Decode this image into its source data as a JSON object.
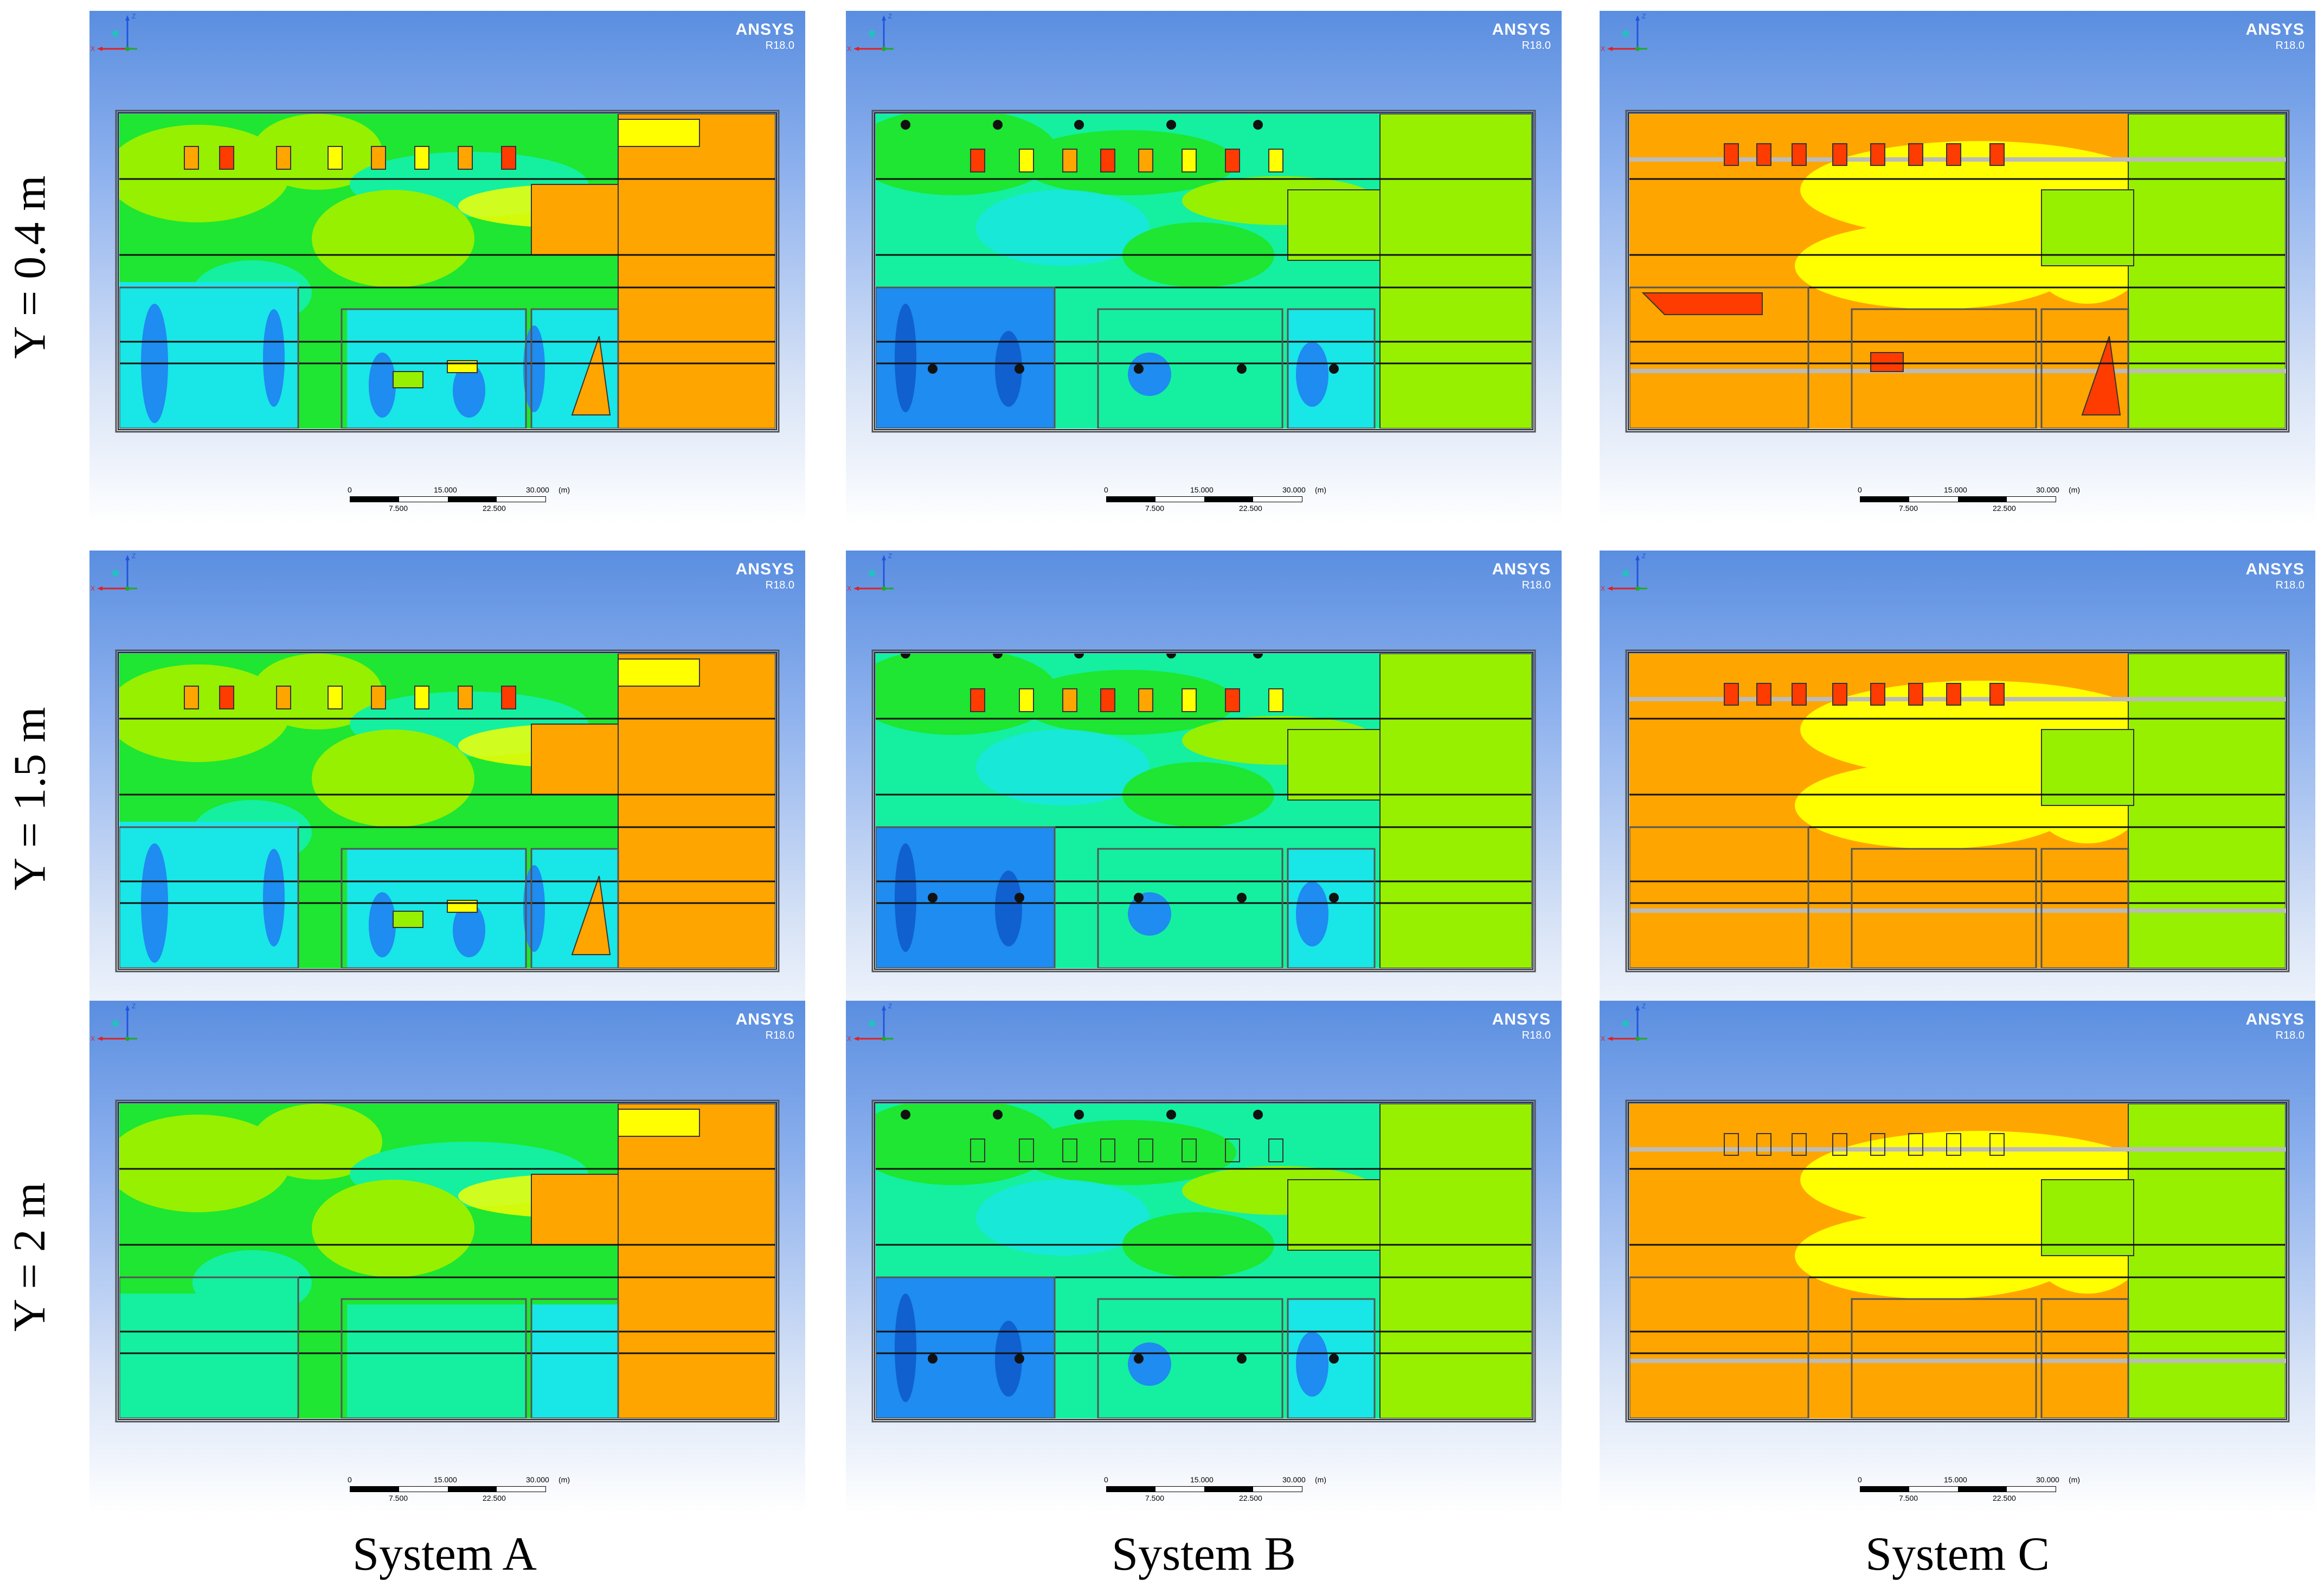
{
  "rows": [
    {
      "label": "Y = 0.4 m"
    },
    {
      "label": "Y = 1.5 m"
    },
    {
      "label": "Y = 2 m"
    }
  ],
  "columns": [
    {
      "label": "System A"
    },
    {
      "label": "System B"
    },
    {
      "label": "System C"
    }
  ],
  "brand": {
    "name": "ANSYS",
    "version": "R18.0"
  },
  "scale_bar": {
    "unit": "(m)",
    "top": [
      "0",
      "15.000",
      "30.000"
    ],
    "bottom": [
      "7.500",
      "22.500"
    ]
  },
  "axis_triad": {
    "z": "Z",
    "x": "X"
  },
  "colors": {
    "background_top": "#5a8ee0",
    "contour_blue": "#1e8cf0",
    "contour_cyan": "#19e6e6",
    "contour_teal": "#14f0a0",
    "contour_green": "#1ee632",
    "contour_lime": "#96f000",
    "contour_yellow": "#ffff00",
    "contour_orange": "#ffa500",
    "contour_red": "#ff3c00"
  }
}
